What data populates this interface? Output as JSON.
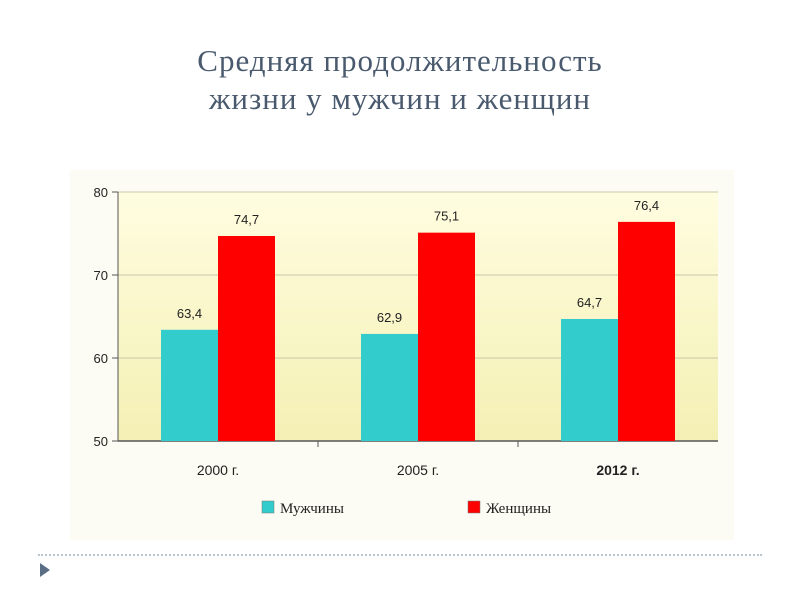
{
  "slide": {
    "title_line1": "Средняя продолжительность",
    "title_line2": "жизни у мужчин и женщин"
  },
  "colors": {
    "men": "#33cccc",
    "women": "#ff0000",
    "title": "#4a5a6e",
    "plot_bg_top": "#fffde0",
    "plot_bg_bottom": "#f4f0b4"
  },
  "chart_data": {
    "type": "bar",
    "categories": [
      "2000 г.",
      "2005 г.",
      "2012 г."
    ],
    "series": [
      {
        "name": "Мужчины",
        "values": [
          63.4,
          62.9,
          64.7
        ],
        "labels": [
          "63,4",
          "62,9",
          "64,7"
        ],
        "color": "#33cccc"
      },
      {
        "name": "Женщины",
        "values": [
          74.7,
          75.1,
          76.4
        ],
        "labels": [
          "74,7",
          "75,1",
          "76,4"
        ],
        "color": "#ff0000"
      }
    ],
    "ylim": [
      50,
      80
    ],
    "yticks": [
      50,
      60,
      70,
      80
    ],
    "grid": true,
    "legend": "bottom",
    "title": "",
    "xlabel": "",
    "ylabel": ""
  }
}
